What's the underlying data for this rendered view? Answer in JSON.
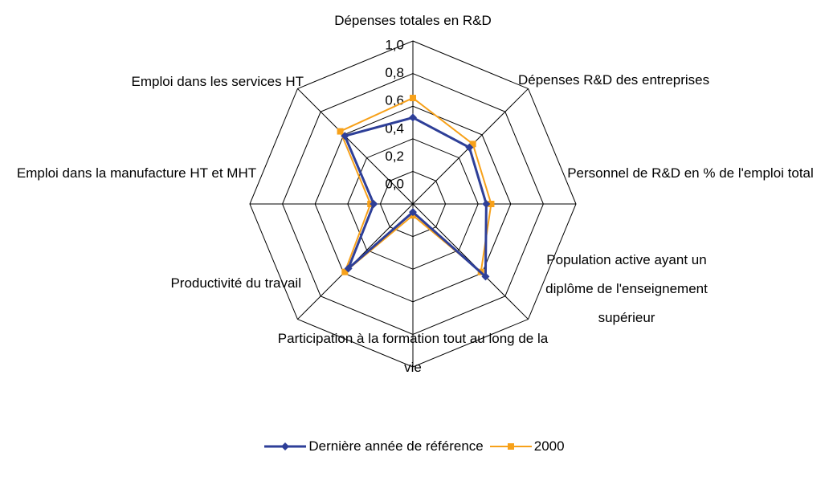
{
  "chart_data": {
    "type": "radar",
    "categories": [
      "Dépenses totales en R&D",
      "Dépenses R&D des entreprises",
      "Personnel de R&D en % de l'emploi total",
      "Population active ayant un diplôme de l'enseignement supérieur",
      "Participation à la formation tout au long de la vie",
      "Productivité du travail",
      "Emploi dans la manufacture HT et MHT",
      "Emploi dans les services HT"
    ],
    "series": [
      {
        "name": "Dernière année de référence",
        "color": "#2e3f98",
        "values": [
          0.53,
          0.49,
          0.45,
          0.63,
          0.05,
          0.56,
          0.24,
          0.59
        ]
      },
      {
        "name": "2000",
        "color": "#f7a11a",
        "values": [
          0.65,
          0.52,
          0.48,
          0.59,
          0.07,
          0.59,
          0.26,
          0.63
        ]
      }
    ],
    "rlim": [
      0,
      1
    ],
    "rticks": [
      {
        "value": 0,
        "label": "0,0"
      },
      {
        "value": 0.2,
        "label": "0,2"
      },
      {
        "value": 0.4,
        "label": "0,4"
      },
      {
        "value": 0.6,
        "label": "0,6"
      },
      {
        "value": 0.8,
        "label": "0,8"
      },
      {
        "value": 1,
        "label": "1,0"
      }
    ],
    "legend": "bottom"
  }
}
